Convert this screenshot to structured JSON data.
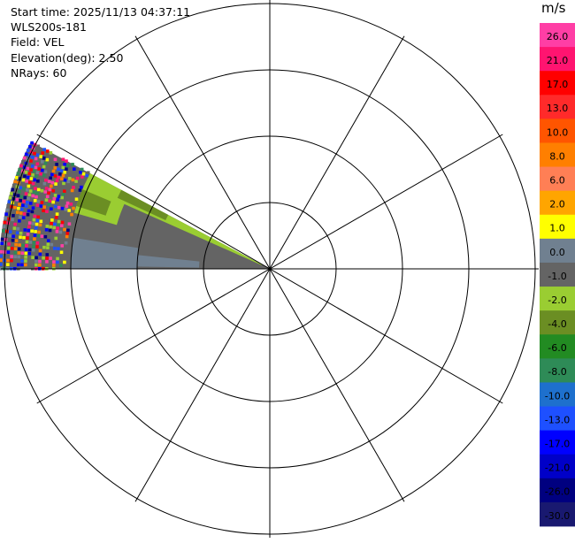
{
  "info": {
    "start_time": "Start time: 2025/11/13 04:37:11",
    "instrument": "WLS200s-181",
    "field": "Field: VEL",
    "elevation": "Elevation(deg): 2.50",
    "nrays": "NRays: 60"
  },
  "colorbar": {
    "unit": "m/s",
    "labels": [
      "26.0",
      "21.0",
      "17.0",
      "13.0",
      "10.0",
      "8.0",
      "6.0",
      "2.0",
      "1.0",
      "0.0",
      "-1.0",
      "-2.0",
      "-4.0",
      "-6.0",
      "-8.0",
      "-10.0",
      "-13.0",
      "-17.0",
      "-21.0",
      "-26.0",
      "-30.0"
    ],
    "colors": [
      "#ff3ea5",
      "#ff1470",
      "#ff0000",
      "#ff2a2a",
      "#ff5500",
      "#ff7f00",
      "#ff7f55",
      "#ffa500",
      "#ffff00",
      "#708090",
      "#646464",
      "#9acd32",
      "#6b8e23",
      "#228b22",
      "#2e8b57",
      "#1e70cd",
      "#1e50ff",
      "#0000ff",
      "#0000c8",
      "#000080",
      "#191970"
    ]
  },
  "ppi": {
    "sector_start_deg": 180,
    "sector_end_deg": 208,
    "ring_count": 4
  }
}
